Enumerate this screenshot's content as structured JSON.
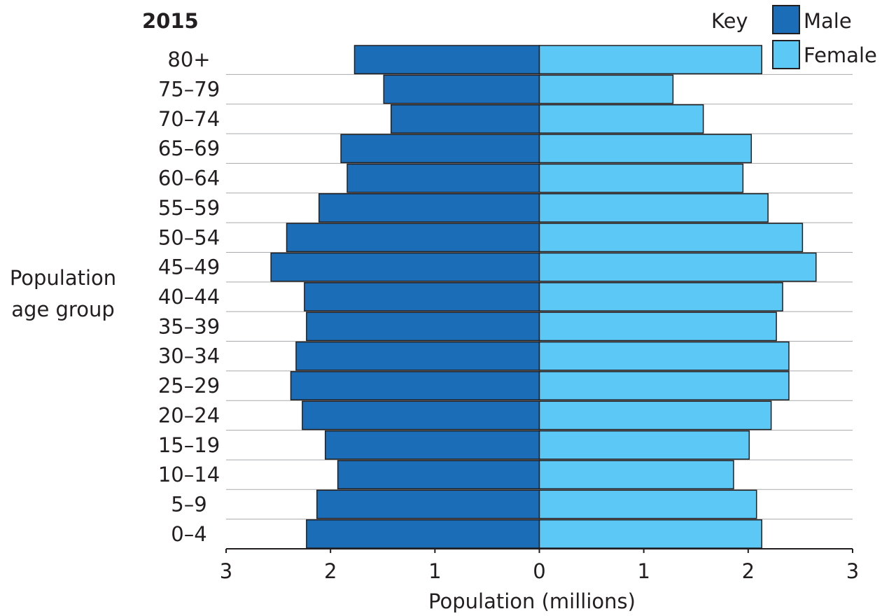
{
  "chart_data": {
    "type": "bar",
    "orientation": "horizontal",
    "layout": "population-pyramid",
    "title": "2015",
    "xlabel": "Population (millions)",
    "ylabel": "Population age group",
    "xlim": [
      -3,
      3
    ],
    "x_ticks": [
      -3,
      -2,
      -1,
      0,
      1,
      2,
      3
    ],
    "x_tick_labels": [
      "3",
      "2",
      "1",
      "0",
      "1",
      "2",
      "3"
    ],
    "legend_title": "Key",
    "legend_position": "top-right",
    "grid": "horizontal lines",
    "categories": [
      "0–4",
      "5–9",
      "10–14",
      "15–19",
      "20–24",
      "25–29",
      "30–34",
      "35–39",
      "40–44",
      "45–49",
      "50–54",
      "55–59",
      "60–64",
      "65–69",
      "70–74",
      "75–79",
      "80+"
    ],
    "series": [
      {
        "name": "Male",
        "color": "#1b6db7",
        "side": "left",
        "values": [
          2.23,
          2.13,
          1.93,
          2.05,
          2.27,
          2.38,
          2.33,
          2.23,
          2.25,
          2.57,
          2.42,
          2.11,
          1.84,
          1.9,
          1.42,
          1.49,
          1.77
        ]
      },
      {
        "name": "Female",
        "color": "#5bc8f5",
        "side": "right",
        "values": [
          2.13,
          2.08,
          1.86,
          2.01,
          2.22,
          2.39,
          2.39,
          2.27,
          2.33,
          2.65,
          2.52,
          2.19,
          1.95,
          2.03,
          1.57,
          1.28,
          2.13
        ]
      }
    ]
  }
}
